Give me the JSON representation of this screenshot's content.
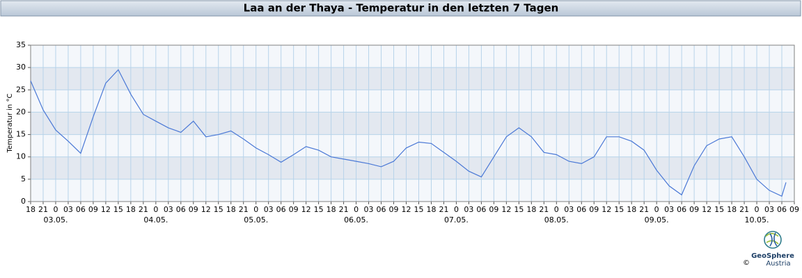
{
  "chart_data": {
    "type": "line",
    "title": "Laa an der Thaya - Temperatur in den letzten 7 Tagen",
    "y_label": "Temperatur in °C",
    "x": [
      "02.05. 18:00",
      "02.05. 21:00",
      "03.05. 00:00",
      "03.05. 03:00",
      "03.05. 06:00",
      "03.05. 09:00",
      "03.05. 12:00",
      "03.05. 15:00",
      "03.05. 18:00",
      "03.05. 21:00",
      "04.05. 00:00",
      "04.05. 03:00",
      "04.05. 06:00",
      "04.05. 09:00",
      "04.05. 12:00",
      "04.05. 15:00",
      "04.05. 18:00",
      "04.05. 21:00",
      "05.05. 00:00",
      "05.05. 03:00",
      "05.05. 06:00",
      "05.05. 09:00",
      "05.05. 12:00",
      "05.05. 15:00",
      "05.05. 18:00",
      "05.05. 21:00",
      "06.05. 00:00",
      "06.05. 03:00",
      "06.05. 06:00",
      "06.05. 09:00",
      "06.05. 12:00",
      "06.05. 15:00",
      "06.05. 18:00",
      "06.05. 21:00",
      "07.05. 00:00",
      "07.05. 03:00",
      "07.05. 06:00",
      "07.05. 09:00",
      "07.05. 12:00",
      "07.05. 15:00",
      "07.05. 18:00",
      "07.05. 21:00",
      "08.05. 00:00",
      "08.05. 03:00",
      "08.05. 06:00",
      "08.05. 09:00",
      "08.05. 12:00",
      "08.05. 15:00",
      "08.05. 18:00",
      "08.05. 21:00",
      "09.05. 00:00",
      "09.05. 03:00",
      "09.05. 06:00",
      "09.05. 09:00",
      "09.05. 12:00",
      "09.05. 15:00",
      "09.05. 18:00",
      "09.05. 21:00",
      "10.05. 00:00",
      "10.05. 03:00",
      "10.05. 06:00",
      "10.05. 07:00"
    ],
    "series": [
      {
        "name": "Temperatur",
        "color": "#4a78d6",
        "values": [
          27,
          20.5,
          16,
          13.5,
          10.8,
          19,
          26.5,
          29.5,
          24,
          19.5,
          18,
          16.5,
          15.5,
          18,
          14.5,
          15,
          15.8,
          14,
          12,
          10.5,
          8.8,
          10.5,
          12.3,
          11.5,
          10,
          9.5,
          9,
          8.5,
          7.8,
          9,
          12,
          13.3,
          13,
          11,
          9,
          6.8,
          5.5,
          10,
          14.5,
          16.5,
          14.5,
          11,
          10.5,
          9,
          8.5,
          10,
          14.5,
          14.5,
          13.5,
          11.5,
          7,
          3.5,
          1.5,
          8,
          12.5,
          14,
          14.5,
          10,
          5,
          2.5,
          1.2,
          4.3
        ]
      }
    ],
    "xlim": [
      "02.05. 18:00",
      "10.05. 09:00"
    ],
    "xticks": [
      {
        "value": "02.05. 18:00",
        "label": "18"
      },
      {
        "value": "02.05. 21:00",
        "label": "21"
      },
      {
        "value": "03.05. 00:00",
        "label": "0"
      },
      {
        "value": "03.05. 03:00",
        "label": "03"
      },
      {
        "value": "03.05. 06:00",
        "label": "06"
      },
      {
        "value": "03.05. 09:00",
        "label": "09"
      },
      {
        "value": "03.05. 12:00",
        "label": "12"
      },
      {
        "value": "03.05. 15:00",
        "label": "15"
      },
      {
        "value": "03.05. 18:00",
        "label": "18"
      },
      {
        "value": "03.05. 21:00",
        "label": "21"
      },
      {
        "value": "04.05. 00:00",
        "label": "0"
      },
      {
        "value": "04.05. 03:00",
        "label": "03"
      },
      {
        "value": "04.05. 06:00",
        "label": "06"
      },
      {
        "value": "04.05. 09:00",
        "label": "09"
      },
      {
        "value": "04.05. 12:00",
        "label": "12"
      },
      {
        "value": "04.05. 15:00",
        "label": "15"
      },
      {
        "value": "04.05. 18:00",
        "label": "18"
      },
      {
        "value": "04.05. 21:00",
        "label": "21"
      },
      {
        "value": "05.05. 00:00",
        "label": "0"
      },
      {
        "value": "05.05. 03:00",
        "label": "03"
      },
      {
        "value": "05.05. 06:00",
        "label": "06"
      },
      {
        "value": "05.05. 09:00",
        "label": "09"
      },
      {
        "value": "05.05. 12:00",
        "label": "12"
      },
      {
        "value": "05.05. 15:00",
        "label": "15"
      },
      {
        "value": "05.05. 18:00",
        "label": "18"
      },
      {
        "value": "05.05. 21:00",
        "label": "21"
      },
      {
        "value": "06.05. 00:00",
        "label": "0"
      },
      {
        "value": "06.05. 03:00",
        "label": "03"
      },
      {
        "value": "06.05. 06:00",
        "label": "06"
      },
      {
        "value": "06.05. 09:00",
        "label": "09"
      },
      {
        "value": "06.05. 12:00",
        "label": "12"
      },
      {
        "value": "06.05. 15:00",
        "label": "15"
      },
      {
        "value": "06.05. 18:00",
        "label": "18"
      },
      {
        "value": "06.05. 21:00",
        "label": "21"
      },
      {
        "value": "07.05. 00:00",
        "label": "0"
      },
      {
        "value": "07.05. 03:00",
        "label": "03"
      },
      {
        "value": "07.05. 06:00",
        "label": "06"
      },
      {
        "value": "07.05. 09:00",
        "label": "09"
      },
      {
        "value": "07.05. 12:00",
        "label": "12"
      },
      {
        "value": "07.05. 15:00",
        "label": "15"
      },
      {
        "value": "07.05. 18:00",
        "label": "18"
      },
      {
        "value": "07.05. 21:00",
        "label": "21"
      },
      {
        "value": "08.05. 00:00",
        "label": "0"
      },
      {
        "value": "08.05. 03:00",
        "label": "03"
      },
      {
        "value": "08.05. 06:00",
        "label": "06"
      },
      {
        "value": "08.05. 09:00",
        "label": "09"
      },
      {
        "value": "08.05. 12:00",
        "label": "12"
      },
      {
        "value": "08.05. 15:00",
        "label": "15"
      },
      {
        "value": "08.05. 18:00",
        "label": "18"
      },
      {
        "value": "08.05. 21:00",
        "label": "21"
      },
      {
        "value": "09.05. 00:00",
        "label": "0"
      },
      {
        "value": "09.05. 03:00",
        "label": "03"
      },
      {
        "value": "09.05. 06:00",
        "label": "06"
      },
      {
        "value": "09.05. 09:00",
        "label": "09"
      },
      {
        "value": "09.05. 12:00",
        "label": "12"
      },
      {
        "value": "09.05. 15:00",
        "label": "15"
      },
      {
        "value": "09.05. 18:00",
        "label": "18"
      },
      {
        "value": "09.05. 21:00",
        "label": "21"
      },
      {
        "value": "10.05. 00:00",
        "label": "0"
      },
      {
        "value": "10.05. 03:00",
        "label": "03"
      },
      {
        "value": "10.05. 06:00",
        "label": "06"
      },
      {
        "value": "10.05. 09:00",
        "label": "09"
      }
    ],
    "date_ticks": [
      {
        "value": "03.05. 00:00",
        "label": "03.05."
      },
      {
        "value": "04.05. 00:00",
        "label": "04.05."
      },
      {
        "value": "05.05. 00:00",
        "label": "05.05."
      },
      {
        "value": "06.05. 00:00",
        "label": "06.05."
      },
      {
        "value": "07.05. 00:00",
        "label": "07.05."
      },
      {
        "value": "08.05. 00:00",
        "label": "08.05."
      },
      {
        "value": "09.05. 00:00",
        "label": "09.05."
      },
      {
        "value": "10.05. 00:00",
        "label": "10.05."
      }
    ],
    "ylim": [
      0,
      35
    ],
    "yticks": [
      0,
      5,
      10,
      15,
      20,
      25,
      30,
      35
    ],
    "grid": true
  },
  "logo": {
    "name": "GeoSphere",
    "sub": "Austria",
    "copyright": "©"
  }
}
